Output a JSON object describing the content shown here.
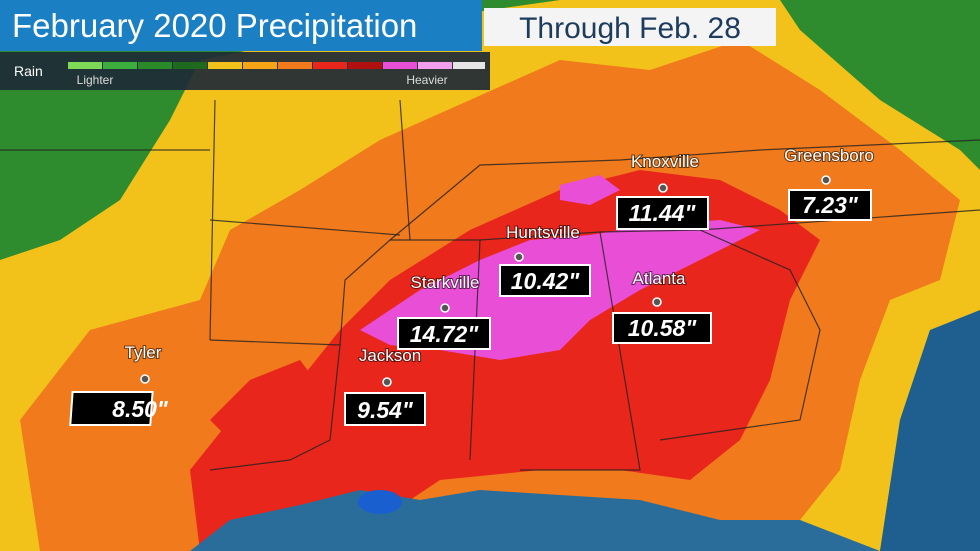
{
  "header": {
    "title": "February 2020 Precipitation",
    "subtitle": "Through Feb. 28"
  },
  "legend": {
    "label": "Rain",
    "lighter": "Lighter",
    "heavier": "Heavier"
  },
  "cities": [
    {
      "name": "Tyler",
      "amount": "8.50\""
    },
    {
      "name": "Jackson",
      "amount": "9.54\""
    },
    {
      "name": "Starkville",
      "amount": "14.72\""
    },
    {
      "name": "Huntsville",
      "amount": "10.42\""
    },
    {
      "name": "Knoxville",
      "amount": "11.44\""
    },
    {
      "name": "Greensboro",
      "amount": "7.23\""
    },
    {
      "name": "Atlanta",
      "amount": "10.58\""
    }
  ]
}
